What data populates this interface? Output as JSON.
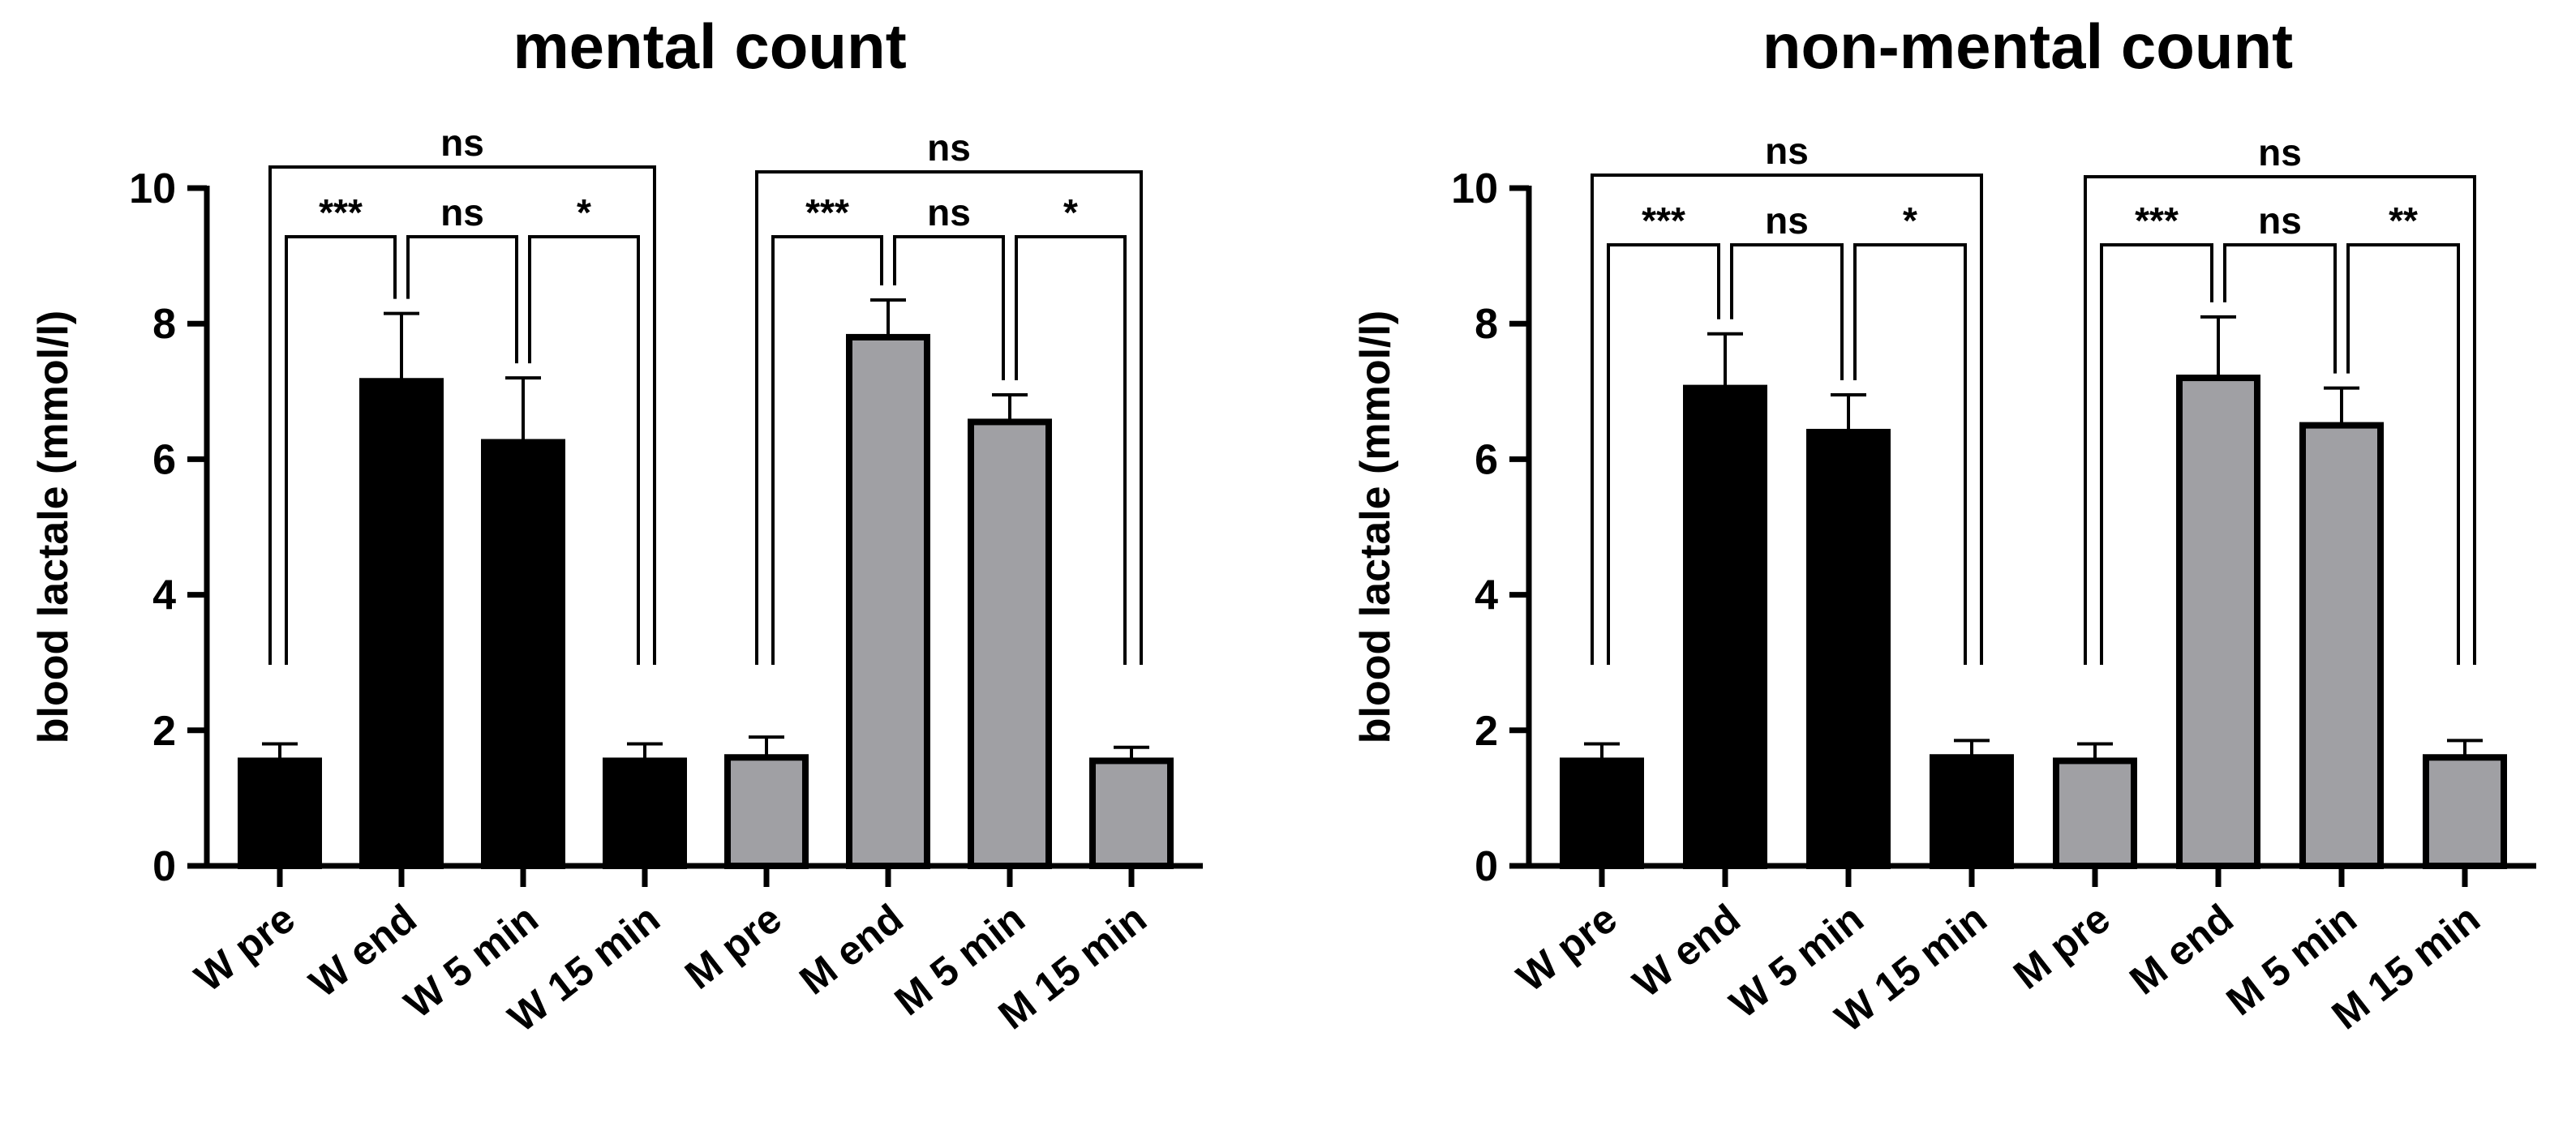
{
  "chart_data": [
    {
      "type": "bar",
      "title": "mental count",
      "xlabel": "",
      "ylabel": "blood lactale (mmol/l)",
      "ylim": [
        0,
        10
      ],
      "yticks": [
        0,
        2,
        4,
        6,
        8,
        10
      ],
      "categories": [
        "W pre",
        "W end",
        "W 5 min",
        "W 15 min",
        "M pre",
        "M end",
        "M 5 min",
        "M 15 min"
      ],
      "values": [
        1.55,
        7.15,
        6.25,
        1.55,
        1.6,
        7.8,
        6.55,
        1.55
      ],
      "errors": [
        0.25,
        1.0,
        0.95,
        0.25,
        0.3,
        0.55,
        0.4,
        0.2
      ],
      "fill_colors": [
        "#000000",
        "#000000",
        "#000000",
        "#000000",
        "#a0a0a4",
        "#a0a0a4",
        "#a0a0a4",
        "#a0a0a4"
      ],
      "annotations": [
        {
          "from": 0,
          "to": 3,
          "label": "ns"
        },
        {
          "from": 4,
          "to": 7,
          "label": "ns"
        },
        {
          "from": 0,
          "to": 1,
          "label": "***"
        },
        {
          "from": 1,
          "to": 2,
          "label": "ns"
        },
        {
          "from": 2,
          "to": 3,
          "label": "*"
        },
        {
          "from": 4,
          "to": 5,
          "label": "***"
        },
        {
          "from": 5,
          "to": 6,
          "label": "ns"
        },
        {
          "from": 6,
          "to": 7,
          "label": "*"
        }
      ]
    },
    {
      "type": "bar",
      "title": "non-mental count",
      "xlabel": "",
      "ylabel": "blood lactale (mmol/l)",
      "ylim": [
        0,
        10
      ],
      "yticks": [
        0,
        2,
        4,
        6,
        8,
        10
      ],
      "categories": [
        "W pre",
        "W end",
        "W 5 min",
        "W 15 min",
        "M pre",
        "M end",
        "M 5 min",
        "M 15 min"
      ],
      "values": [
        1.55,
        7.05,
        6.4,
        1.6,
        1.55,
        7.2,
        6.5,
        1.6
      ],
      "errors": [
        0.25,
        0.8,
        0.55,
        0.25,
        0.25,
        0.9,
        0.55,
        0.25
      ],
      "fill_colors": [
        "#000000",
        "#000000",
        "#000000",
        "#000000",
        "#a0a0a4",
        "#a0a0a4",
        "#a0a0a4",
        "#a0a0a4"
      ],
      "annotations": [
        {
          "from": 0,
          "to": 3,
          "label": "ns"
        },
        {
          "from": 4,
          "to": 7,
          "label": "ns"
        },
        {
          "from": 0,
          "to": 1,
          "label": "***"
        },
        {
          "from": 1,
          "to": 2,
          "label": "ns"
        },
        {
          "from": 2,
          "to": 3,
          "label": "*"
        },
        {
          "from": 4,
          "to": 5,
          "label": "***"
        },
        {
          "from": 5,
          "to": 6,
          "label": "ns"
        },
        {
          "from": 6,
          "to": 7,
          "label": "**"
        }
      ]
    }
  ]
}
